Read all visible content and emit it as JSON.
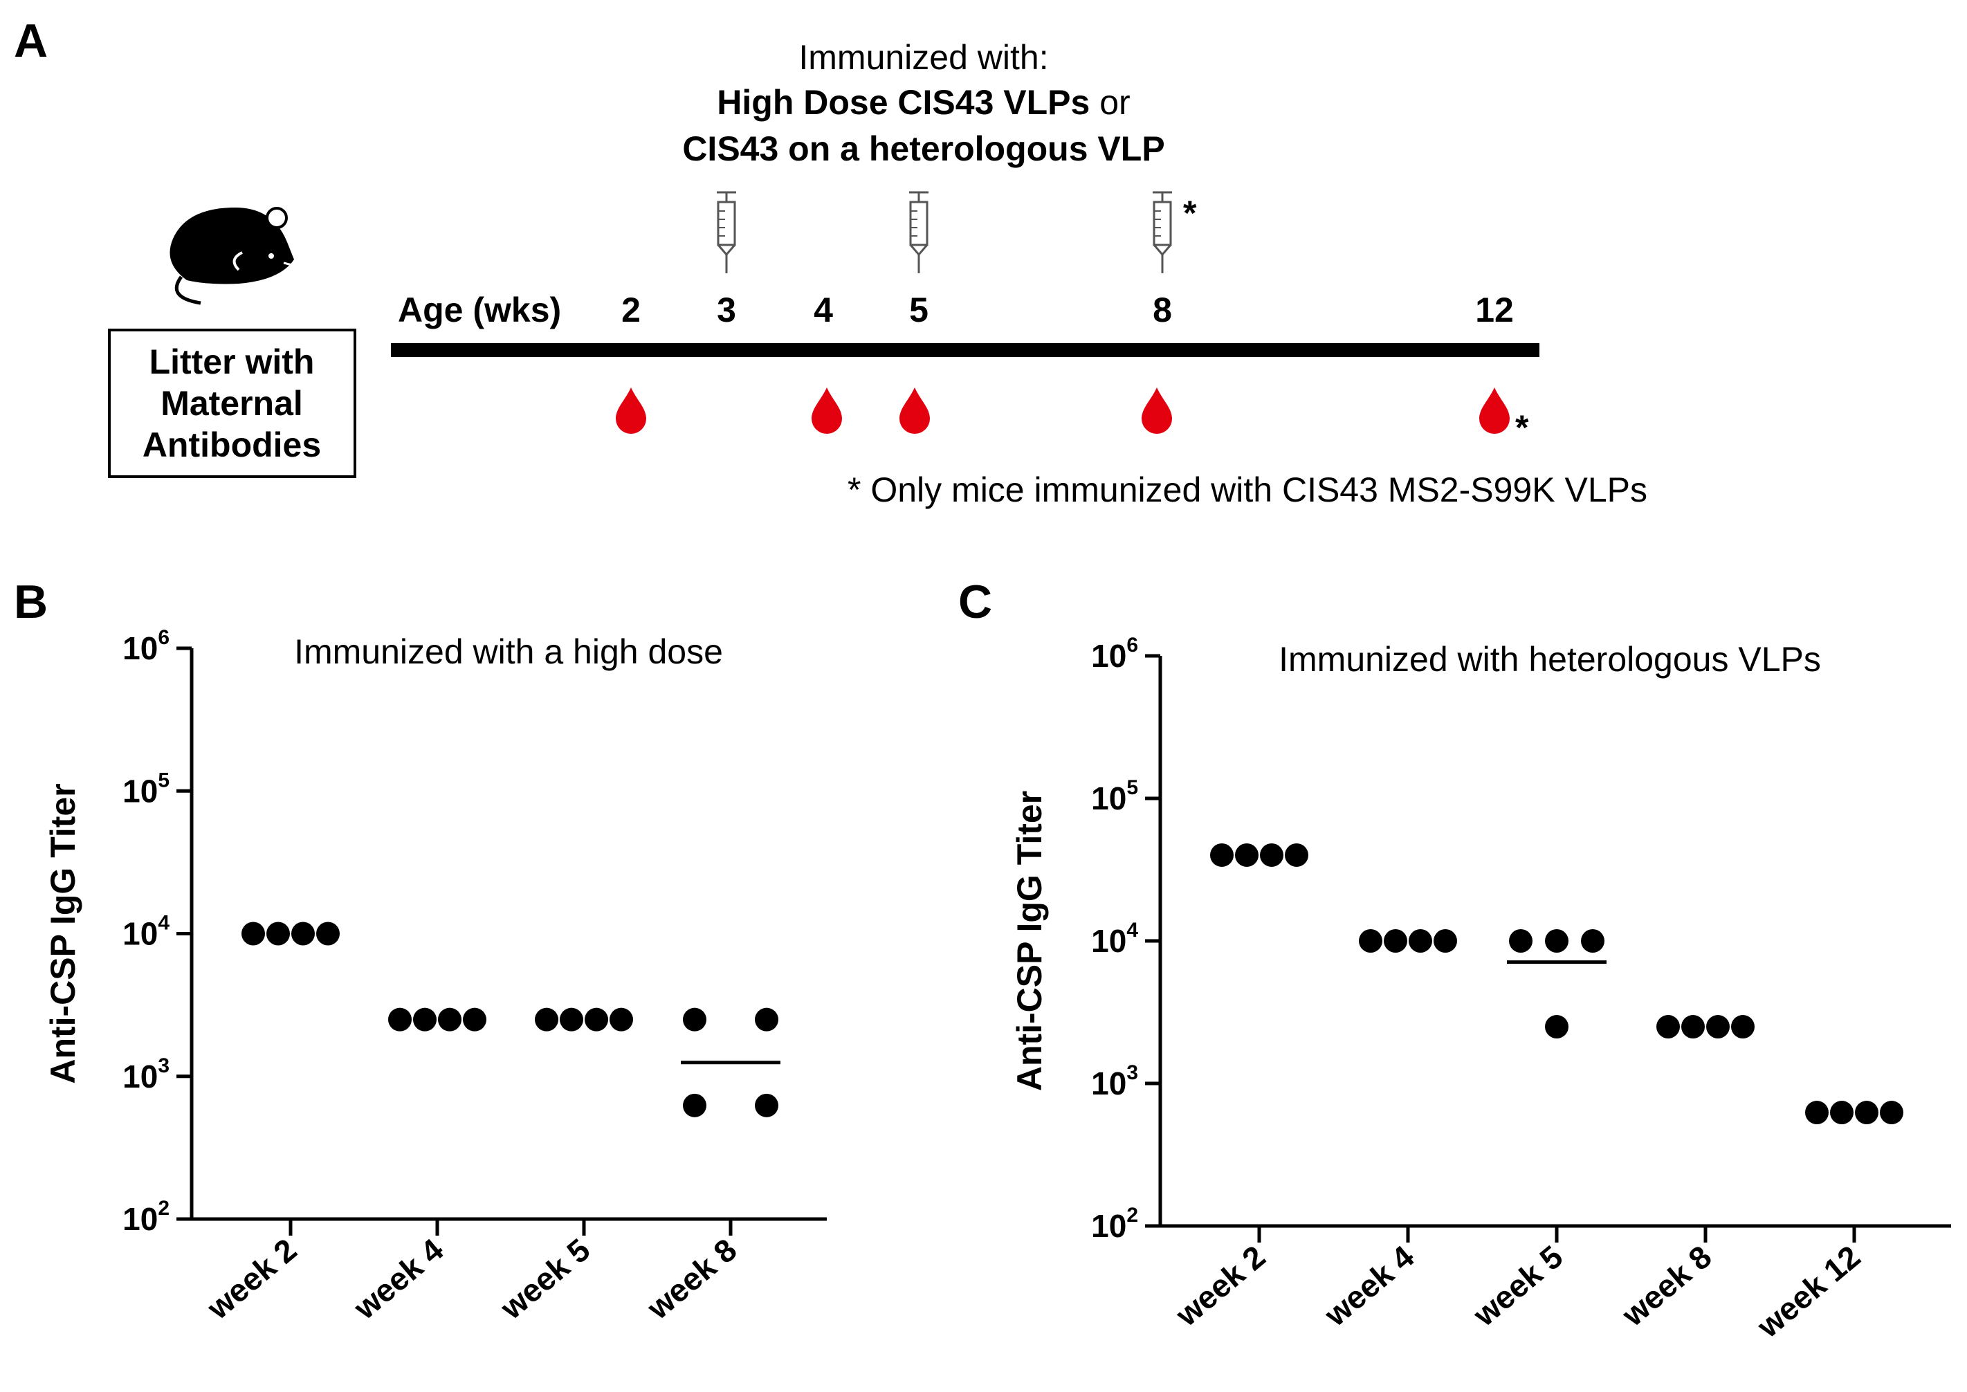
{
  "panel_a": {
    "letter": "A",
    "immunized_line1": "Immunized with:",
    "immunized_line2_bold": "High Dose CIS43 VLPs",
    "immunized_line2_tail": " or",
    "immunized_line3_bold": "CIS43 on a heterologous VLP",
    "litter_box_lines": [
      "Litter with",
      "Maternal",
      "Antibodies"
    ],
    "age_label": "Age (wks)",
    "ages": [
      "2",
      "3",
      "4",
      "5",
      "8",
      "12"
    ],
    "injection_weeks": [
      "3",
      "5",
      "8"
    ],
    "bleed_weeks": [
      "2",
      "4",
      "5",
      "8",
      "12"
    ],
    "asterisk": "*",
    "footnote": "* Only mice immunized with CIS43 MS2-S99K VLPs",
    "colors": {
      "blood": "#e3000f",
      "line": "#000000"
    }
  },
  "chart_data": [
    {
      "panel_letter": "B",
      "type": "scatter",
      "title": "Immunized with a high dose",
      "xlabel": "",
      "ylabel": "Anti-CSP IgG Titer",
      "yscale": "log",
      "ylim": [
        100,
        1000000
      ],
      "y_ticks": [
        {
          "base": "10",
          "exp": "2"
        },
        {
          "base": "10",
          "exp": "3"
        },
        {
          "base": "10",
          "exp": "4"
        },
        {
          "base": "10",
          "exp": "5"
        },
        {
          "base": "10",
          "exp": "6"
        }
      ],
      "categories": [
        "week 2",
        "week 4",
        "week 5",
        "week 8"
      ],
      "points": [
        [
          10000,
          10000,
          10000,
          10000
        ],
        [
          2500,
          2500,
          2500,
          2500
        ],
        [
          2500,
          2500,
          2500,
          2500
        ],
        [
          2500,
          2500,
          625,
          625
        ]
      ],
      "geo_mean_lines": [
        null,
        null,
        null,
        1250
      ],
      "grid": false
    },
    {
      "panel_letter": "C",
      "type": "scatter",
      "title": "Immunized with heterologous VLPs",
      "xlabel": "",
      "ylabel": "Anti-CSP IgG Titer",
      "yscale": "log",
      "ylim": [
        100,
        1000000
      ],
      "y_ticks": [
        {
          "base": "10",
          "exp": "2"
        },
        {
          "base": "10",
          "exp": "3"
        },
        {
          "base": "10",
          "exp": "4"
        },
        {
          "base": "10",
          "exp": "5"
        },
        {
          "base": "10",
          "exp": "6"
        }
      ],
      "categories": [
        "week 2",
        "week 4",
        "week 5",
        "week 8",
        "week 12"
      ],
      "points": [
        [
          40000,
          40000,
          40000,
          40000
        ],
        [
          10000,
          10000,
          10000,
          10000
        ],
        [
          10000,
          10000,
          10000,
          2500
        ],
        [
          2500,
          2500,
          2500,
          2500
        ],
        [
          625,
          625,
          625,
          625
        ]
      ],
      "geo_mean_lines": [
        null,
        null,
        7100,
        null,
        null
      ],
      "grid": false
    }
  ]
}
